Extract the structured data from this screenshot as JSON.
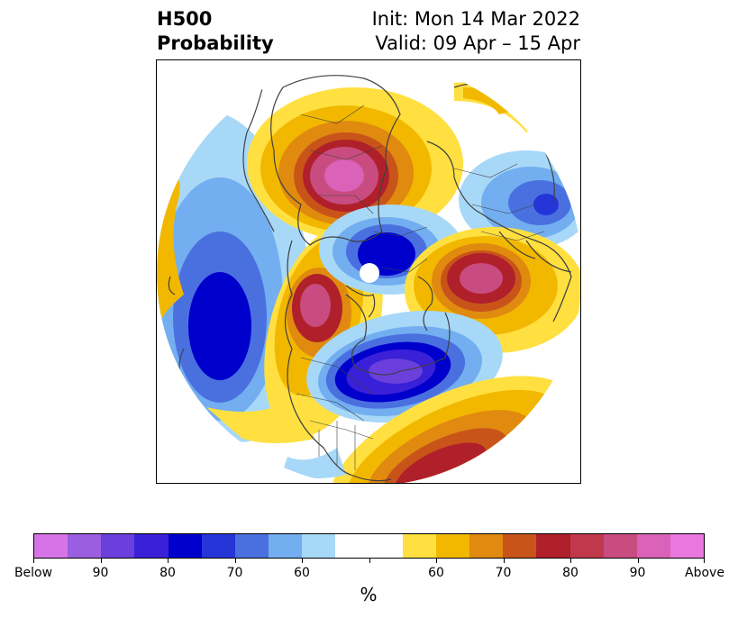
{
  "header": {
    "title_line1": "H500",
    "title_line2": "Probability",
    "init": "Init: Mon 14 Mar 2022",
    "valid": "Valid: 09 Apr – 15 Apr"
  },
  "map": {
    "projection": "north-polar-stereographic",
    "field": "500 hPa height probability",
    "colorbar": {
      "tick_labels": [
        "Below",
        "90",
        "80",
        "70",
        "60",
        "",
        "60",
        "70",
        "80",
        "90",
        "Above"
      ],
      "unit": "%",
      "colors": [
        "#d673e6",
        "#9b5ee0",
        "#6a3fdc",
        "#3a20d6",
        "#0000cc",
        "#2535d8",
        "#4a70e0",
        "#72aef0",
        "#a8d8f8",
        "#ffffff",
        "#ffffff",
        "#ffe040",
        "#f2b800",
        "#e08a10",
        "#c8541a",
        "#b0202a",
        "#c0384c",
        "#c84c80",
        "#da62b8",
        "#e878e0"
      ]
    }
  }
}
